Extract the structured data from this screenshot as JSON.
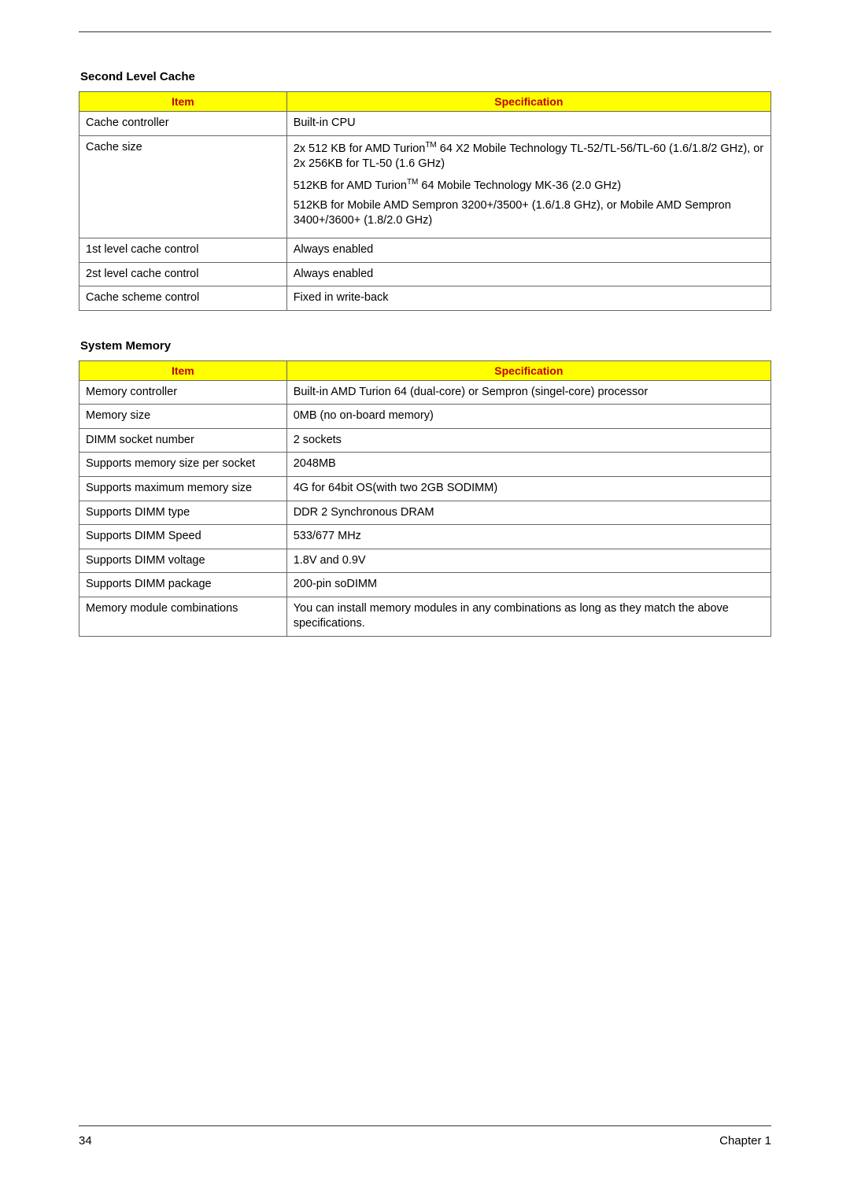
{
  "sections": [
    {
      "title": "Second Level Cache",
      "headers": {
        "item": "Item",
        "spec": "Specification"
      },
      "rows": [
        {
          "item": "Cache controller",
          "spec_paras": [
            "Built-in CPU"
          ]
        },
        {
          "item": "Cache size",
          "spec_paras": [
            "2x 512 KB for AMD Turion{TM} 64 X2 Mobile Technology TL-52/TL-56/TL-60 (1.6/1.8/2 GHz), or 2x 256KB for TL-50 (1.6 GHz)",
            "512KB for AMD Turion{TM} 64 Mobile Technology MK-36 (2.0 GHz)",
            "512KB for Mobile AMD Sempron 3200+/3500+ (1.6/1.8 GHz), or Mobile AMD Sempron 3400+/3600+ (1.8/2.0 GHz)"
          ]
        },
        {
          "item": "1st level cache control",
          "spec_paras": [
            "Always enabled"
          ]
        },
        {
          "item": "2st level cache control",
          "spec_paras": [
            "Always enabled"
          ]
        },
        {
          "item": "Cache scheme control",
          "spec_paras": [
            "Fixed in write-back"
          ]
        }
      ]
    },
    {
      "title": "System Memory",
      "headers": {
        "item": "Item",
        "spec": "Specification"
      },
      "rows": [
        {
          "item": "Memory controller",
          "spec_paras": [
            "Built-in AMD Turion 64 (dual-core) or Sempron (singel-core) processor"
          ]
        },
        {
          "item": "Memory size",
          "spec_paras": [
            "0MB (no on-board memory)"
          ]
        },
        {
          "item": "DIMM socket number",
          "spec_paras": [
            "2 sockets"
          ]
        },
        {
          "item": "Supports memory size per socket",
          "spec_paras": [
            "2048MB"
          ]
        },
        {
          "item": "Supports maximum memory size",
          "spec_paras": [
            "4G for 64bit OS(with two 2GB SODIMM)"
          ]
        },
        {
          "item": "Supports DIMM type",
          "spec_paras": [
            "DDR 2 Synchronous DRAM"
          ]
        },
        {
          "item": "Supports DIMM Speed",
          "spec_paras": [
            "533/677 MHz"
          ]
        },
        {
          "item": "Supports DIMM voltage",
          "spec_paras": [
            "1.8V and 0.9V"
          ]
        },
        {
          "item": "Supports DIMM package",
          "spec_paras": [
            "200-pin soDIMM"
          ]
        },
        {
          "item": "Memory module combinations",
          "spec_paras": [
            "You can install memory modules in any combinations as long as they match the above specifications."
          ]
        }
      ]
    }
  ],
  "footer": {
    "page_number": "34",
    "chapter": "Chapter 1"
  },
  "colors": {
    "header_bg": "#ffff00",
    "header_text": "#c00000",
    "border": "#666666",
    "rule": "#333333",
    "text": "#000000",
    "background": "#ffffff"
  }
}
